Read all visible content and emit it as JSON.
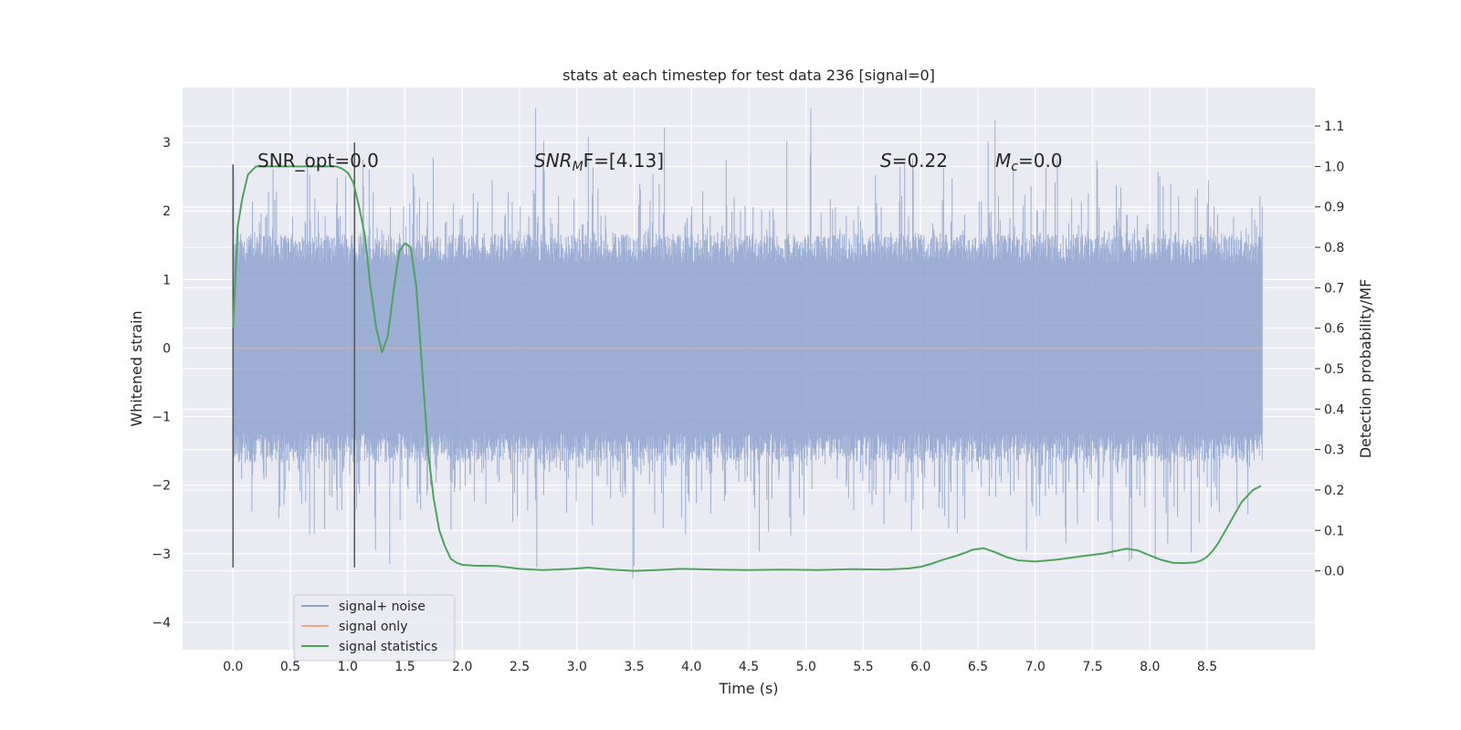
{
  "chart_data": {
    "type": "line",
    "title": "stats at each timestep for test data 236 [signal=0]",
    "xlabel": "Time (s)",
    "ylabel": "Whitened strain",
    "y2label": "Detection probability/MF",
    "xlim": [
      -0.44,
      9.44
    ],
    "ylim": [
      -4.4,
      3.8
    ],
    "y2lim": [
      -0.195,
      1.195
    ],
    "x_ticks": [
      0.0,
      0.5,
      1.0,
      1.5,
      2.0,
      2.5,
      3.0,
      3.5,
      4.0,
      4.5,
      5.0,
      5.5,
      6.0,
      6.5,
      7.0,
      7.5,
      8.0,
      8.5
    ],
    "y_ticks": [
      -4,
      -3,
      -2,
      -1,
      0,
      1,
      2,
      3
    ],
    "y2_ticks": [
      0.0,
      0.1,
      0.2,
      0.3,
      0.4,
      0.5,
      0.6,
      0.7,
      0.8,
      0.9,
      1.0,
      1.1
    ],
    "grid": true,
    "legend_position": "lower-left",
    "annotations": {
      "snr_opt": "SNR_opt=0.0",
      "snr_mf_base": "SNR",
      "snr_mf_sub": "M",
      "snr_mf_rest": "F=[4.13]",
      "s_italic": "S",
      "s_rest": "=0.22",
      "mc_italic": "M",
      "mc_sub": "c",
      "mc_rest": "=0.0"
    },
    "vlines": [
      {
        "x": 0.0,
        "y_from": -3.2,
        "y_to": 2.68
      },
      {
        "x": 1.06,
        "y_from": -3.2,
        "y_to": 3.0
      }
    ],
    "series": [
      {
        "name": "signal+ noise",
        "color": "#8ea3cf",
        "axis": "left",
        "x_range": [
          0.0,
          8.98
        ],
        "n_points": 1800,
        "core_amplitude": 1.45,
        "seed": 236
      },
      {
        "name": "signal only",
        "color": "#e8a98a",
        "axis": "left",
        "x": [
          0.0,
          8.98
        ],
        "y": [
          0.0,
          0.0
        ]
      },
      {
        "name": "signal statistics",
        "color": "#4ca45c",
        "axis": "right",
        "x": [
          0.0,
          0.04,
          0.08,
          0.13,
          0.2,
          0.3,
          0.5,
          0.7,
          0.8,
          0.9,
          0.95,
          1.0,
          1.05,
          1.1,
          1.15,
          1.2,
          1.25,
          1.3,
          1.35,
          1.4,
          1.45,
          1.5,
          1.55,
          1.6,
          1.65,
          1.7,
          1.75,
          1.8,
          1.85,
          1.9,
          1.95,
          2.0,
          2.1,
          2.3,
          2.5,
          2.7,
          2.9,
          3.1,
          3.3,
          3.5,
          3.7,
          3.9,
          4.2,
          4.5,
          4.8,
          5.1,
          5.4,
          5.7,
          5.9,
          6.0,
          6.1,
          6.2,
          6.3,
          6.4,
          6.45,
          6.55,
          6.65,
          6.75,
          6.85,
          7.0,
          7.2,
          7.4,
          7.6,
          7.75,
          7.8,
          7.9,
          8.0,
          8.1,
          8.2,
          8.3,
          8.4,
          8.45,
          8.5,
          8.55,
          8.6,
          8.7,
          8.8,
          8.9,
          8.97
        ],
        "y": [
          0.6,
          0.85,
          0.92,
          0.98,
          1.0,
          1.0,
          1.0,
          1.0,
          1.0,
          1.0,
          0.995,
          0.985,
          0.96,
          0.9,
          0.83,
          0.7,
          0.6,
          0.54,
          0.58,
          0.69,
          0.79,
          0.81,
          0.8,
          0.7,
          0.5,
          0.3,
          0.18,
          0.1,
          0.06,
          0.03,
          0.02,
          0.015,
          0.013,
          0.012,
          0.005,
          0.002,
          0.004,
          0.008,
          0.003,
          0.0,
          0.002,
          0.005,
          0.003,
          0.002,
          0.003,
          0.002,
          0.004,
          0.003,
          0.006,
          0.01,
          0.018,
          0.028,
          0.036,
          0.046,
          0.052,
          0.056,
          0.046,
          0.034,
          0.026,
          0.023,
          0.028,
          0.036,
          0.043,
          0.052,
          0.055,
          0.05,
          0.038,
          0.027,
          0.02,
          0.019,
          0.021,
          0.026,
          0.035,
          0.05,
          0.07,
          0.12,
          0.17,
          0.2,
          0.21
        ]
      }
    ]
  }
}
